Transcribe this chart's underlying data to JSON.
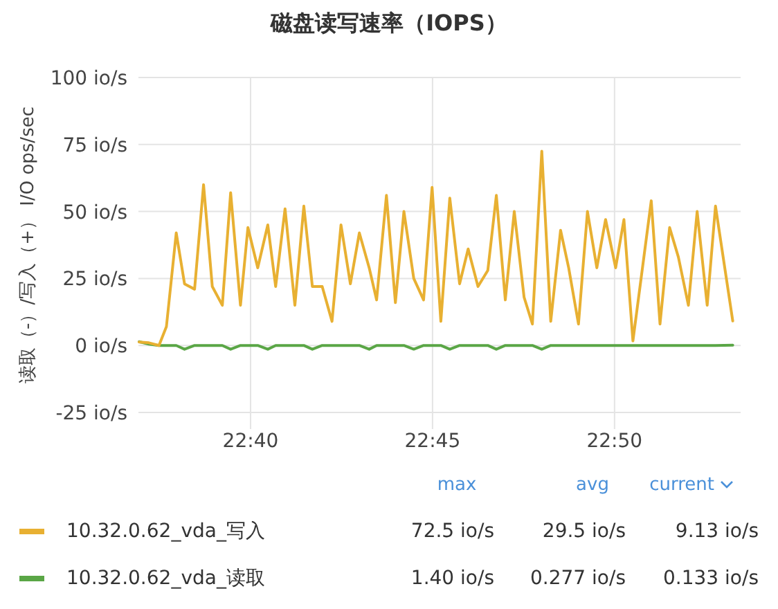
{
  "chart_data": {
    "type": "line",
    "title": "磁盘读写速率（IOPS）",
    "ylabel": "读取（-）/写入（+） I/O ops/sec",
    "x": [
      22.6157,
      22.6202,
      22.6248,
      22.6282,
      22.6327,
      22.6365,
      22.6411,
      22.6452,
      22.6492,
      22.6538,
      22.6576,
      22.6621,
      22.6655,
      22.67,
      22.6746,
      22.6782,
      22.6825,
      22.687,
      22.6911,
      22.695,
      22.6995,
      22.704,
      22.7081,
      22.7124,
      22.7165,
      22.721,
      22.7244,
      22.7289,
      22.733,
      22.7369,
      22.7414,
      22.7459,
      22.7498,
      22.7538,
      22.7579,
      22.7624,
      22.7663,
      22.7708,
      22.7753,
      22.7792,
      22.7833,
      22.7874,
      22.7919,
      22.7957,
      22.8,
      22.8041,
      22.8086,
      22.8123,
      22.8168,
      22.8209,
      22.8252,
      22.8292,
      22.8338,
      22.8376,
      22.8417,
      22.8501,
      22.8541,
      22.8585,
      22.8625,
      22.8671,
      22.8711,
      22.8757,
      22.8795,
      22.8874
    ],
    "series": [
      {
        "name": "10.32.0.62_vda_写入",
        "color": "#e8b032",
        "values": [
          1.3,
          1,
          0,
          7,
          42,
          23,
          21,
          60,
          22,
          15,
          57,
          15,
          44,
          29,
          45,
          22,
          51,
          15,
          52,
          22,
          22,
          9,
          45,
          23,
          42,
          29,
          17,
          56,
          16,
          50,
          25,
          17,
          59,
          9,
          55,
          23,
          36,
          22,
          28,
          56,
          17,
          50,
          18,
          8,
          72.5,
          9,
          43,
          29,
          8,
          50,
          29,
          47,
          29,
          47,
          1.7,
          54,
          8,
          44,
          33,
          15,
          50,
          15,
          52,
          9.13
        ]
      },
      {
        "name": "10.32.0.62_vda_读取",
        "color": "#5aa646",
        "values": [
          1.4,
          0.5,
          0,
          0,
          0,
          -1.4,
          0,
          0,
          0,
          0,
          -1.4,
          0,
          0,
          0,
          -1.4,
          0,
          0,
          0,
          0,
          -1.4,
          0,
          0,
          0,
          0,
          0,
          -1.4,
          0,
          0,
          0,
          0,
          -1.4,
          0,
          0,
          0,
          -1.4,
          0,
          0,
          0,
          0,
          -1.4,
          0,
          0,
          0,
          0,
          -1.4,
          0,
          0,
          0,
          0,
          0,
          0,
          0,
          0,
          0,
          0,
          0,
          0,
          0,
          0,
          0,
          0,
          0,
          0,
          0.133
        ]
      }
    ],
    "xlim": [
      22.6154,
      22.891
    ],
    "xticks": [
      {
        "value": 22.6667,
        "label": "22:40"
      },
      {
        "value": 22.75,
        "label": "22:45"
      },
      {
        "value": 22.8333,
        "label": "22:50"
      }
    ],
    "ylim": [
      -25,
      100
    ],
    "yticks": [
      {
        "value": -25,
        "label": "-25 io/s"
      },
      {
        "value": 0,
        "label": "0 io/s"
      },
      {
        "value": 25,
        "label": "25 io/s"
      },
      {
        "value": 50,
        "label": "50 io/s"
      },
      {
        "value": 75,
        "label": "75 io/s"
      },
      {
        "value": 100,
        "label": "100 io/s"
      }
    ],
    "grid": true,
    "legend": "bottom",
    "marker": "none",
    "line_style": "solid",
    "annotations": [
      "max",
      "avg",
      "current",
      "72.5 io/s",
      "29.5 io/s",
      "9.13 io/s",
      "1.40 io/s",
      "0.277 io/s",
      "0.133 io/s"
    ]
  }
}
